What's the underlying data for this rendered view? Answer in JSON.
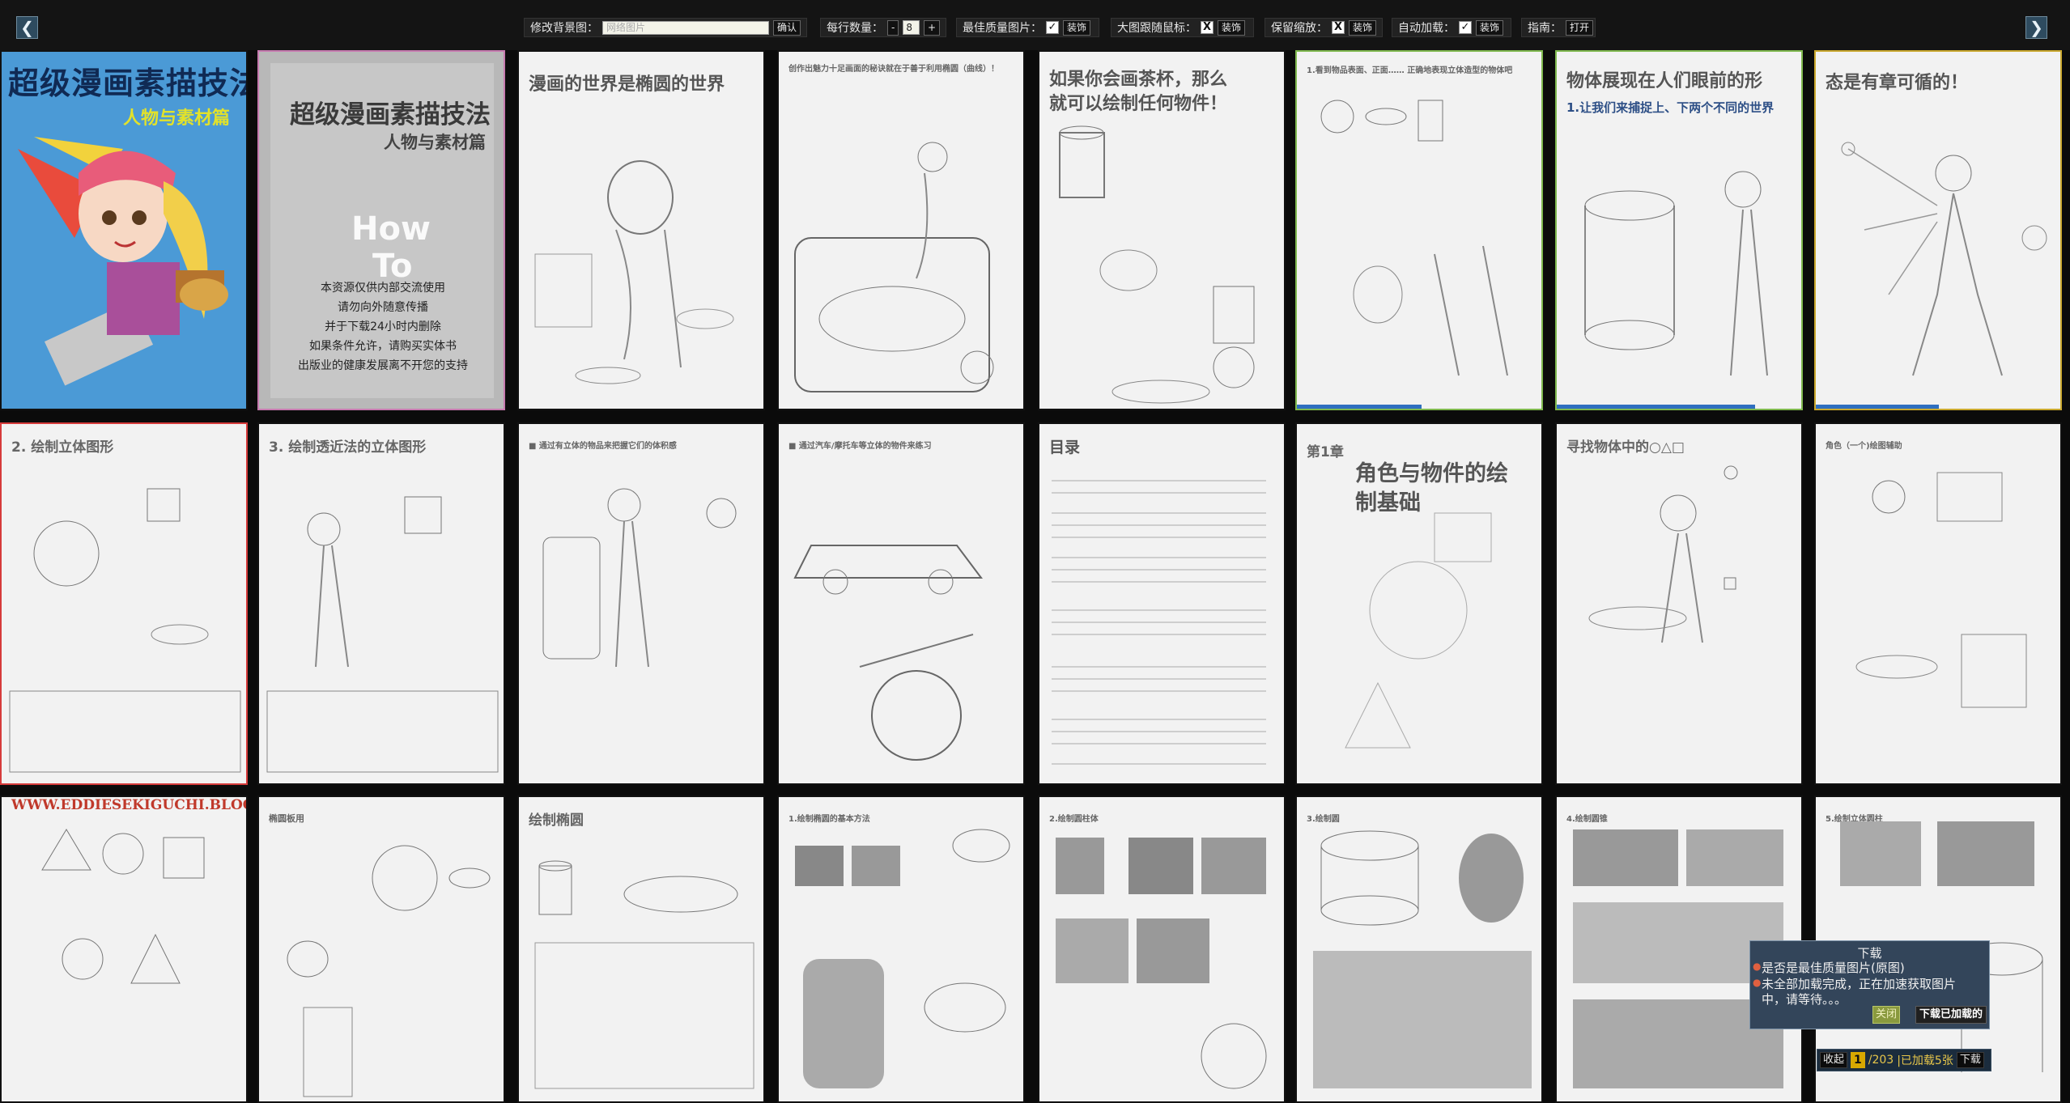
{
  "toolbar": {
    "prev_arrow": "❮",
    "next_arrow": "❯",
    "background": {
      "label": "修改背景图：",
      "placeholder": "网络图片",
      "confirm": "确认"
    },
    "per_row": {
      "label": "每行数量：",
      "minus": "-",
      "value": "8",
      "plus": "+"
    },
    "best_quality": {
      "label": "最佳质量图片：",
      "checked": "✓",
      "button": "装饰"
    },
    "follow_mouse": {
      "label": "大图跟随鼠标：",
      "checked": "X",
      "button": "装饰"
    },
    "keep_zoom": {
      "label": "保留缩放：",
      "checked": "X",
      "button": "装饰"
    },
    "auto_load": {
      "label": "自动加载：",
      "checked": "✓",
      "button": "装饰"
    },
    "guide": {
      "label": "指南：",
      "button": "打开"
    }
  },
  "pages": {
    "cover": {
      "title": "超级漫画素描技法",
      "subtitle": "人物与素材篇"
    },
    "title_page": {
      "title": "超级漫画素描技法",
      "subtitle": "人物与素材篇",
      "how": "How",
      "to": "To",
      "notice": [
        "本资源仅供内部交流使用",
        "请勿向外随意传播",
        "并于下载24小时内删除",
        "如果条件允许，请购买实体书",
        "出版业的健康发展离不开您的支持"
      ]
    },
    "p3": "漫画的世界是椭圆的世界",
    "p4": "创作出魅力十足画面的秘诀就在于善于利用椭圆（曲线）！",
    "p5": [
      "如果你会画茶杯，那么",
      "就可以绘制任何物件！"
    ],
    "p6": "1.看到物品表面、正面…… 正确地表现立体造型的物体吧",
    "p7": [
      "物体展现在人们眼前的形",
      "1.让我们来捕捉上、下两个不同的世界"
    ],
    "p8": "态是有章可循的！",
    "p9": "2. 绘制立体图形",
    "p10": "3. 绘制透近法的立体图形",
    "p11": "■ 通过有立体的物品来把握它们的体积感",
    "p12": "■ 通过汽车/摩托车等立体的物件来练习",
    "p13": "目录",
    "p14": {
      "chapter": "第1章",
      "title": [
        "角色与物件的绘",
        "制基础"
      ]
    },
    "p15": "寻找物体中的○△□",
    "p16": "角色（一个)绘图辅助",
    "p17": "WWW.EDDIESEKIGUCHI.BLOGSPOT.COM",
    "p18": "椭圆板用",
    "p19": "绘制椭圆",
    "p20": "1.绘制椭圆的基本方法",
    "p21": "2.绘制圆柱体",
    "p22": "3.绘制圆",
    "p23": "4.绘制圆锥",
    "p24": "5.绘制立体圆柱"
  },
  "download_popup": {
    "title": "下载",
    "line1": "是否是最佳质量图片(原图)",
    "line2": "未全部加载完成，正在加速获取图片",
    "line3": "中，请等待。。。",
    "close": "关闭",
    "download_loaded": "下载已加载的"
  },
  "control_bar": {
    "collapse": "收起",
    "current": "1",
    "total": "/203",
    "loaded": "|已加载5张",
    "download": "下载"
  }
}
